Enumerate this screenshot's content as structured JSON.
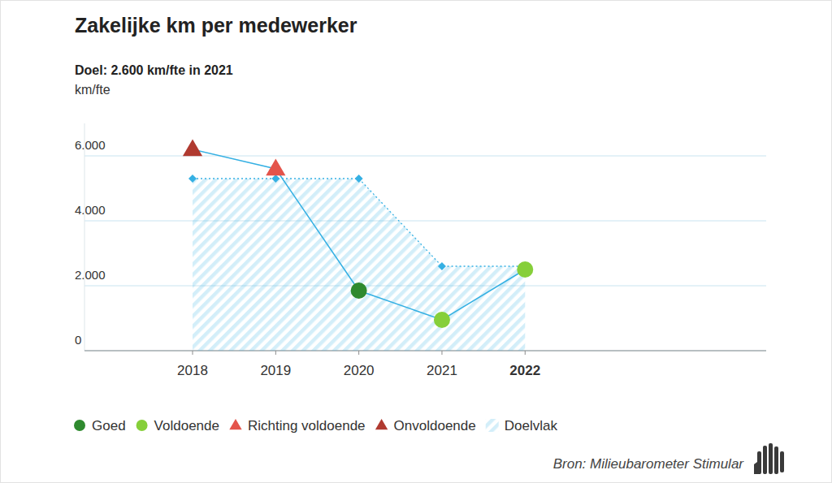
{
  "chart_data": {
    "type": "line",
    "title": "Zakelijke km per medewerker",
    "subtitle": "Doel: 2.600 km/fte in 2021",
    "y_label": "km/fte",
    "source": "Bron: Milieubarometer Stimular",
    "x": [
      2018,
      2019,
      2020,
      2021,
      2022
    ],
    "xlim": [
      2016.7,
      2024.9
    ],
    "xticks": [
      2018,
      2019,
      2020,
      2021,
      2022
    ],
    "ylim": [
      0,
      7000
    ],
    "yticks": [
      0,
      {
        "value": 2000,
        "label": "2.000"
      },
      {
        "value": 4000,
        "label": "4.000"
      },
      {
        "value": 6000,
        "label": "6.000"
      }
    ],
    "grid": true,
    "status_legend": [
      {
        "name": "Goed",
        "color": "#2f8a2f",
        "marker": "circle"
      },
      {
        "name": "Voldoende",
        "color": "#86cf3a",
        "marker": "circle"
      },
      {
        "name": "Richting voldoende",
        "color": "#e4544b",
        "marker": "triangle"
      },
      {
        "name": "Onvoldoende",
        "color": "#b03a30",
        "marker": "triangle"
      }
    ],
    "series": [
      {
        "type": "line",
        "color": "#35b0e3",
        "values": [
          6200,
          5600,
          1850,
          950,
          2500
        ],
        "status": [
          "Onvoldoende",
          "Richting voldoende",
          "Goed",
          "Voldoende",
          "Voldoende"
        ]
      },
      {
        "name": "Doelvlak",
        "type": "area",
        "color": "#35b0e3",
        "line_style": "dotted",
        "marker": "diamond",
        "values": [
          5300,
          5300,
          5300,
          2600,
          2600
        ]
      }
    ]
  }
}
